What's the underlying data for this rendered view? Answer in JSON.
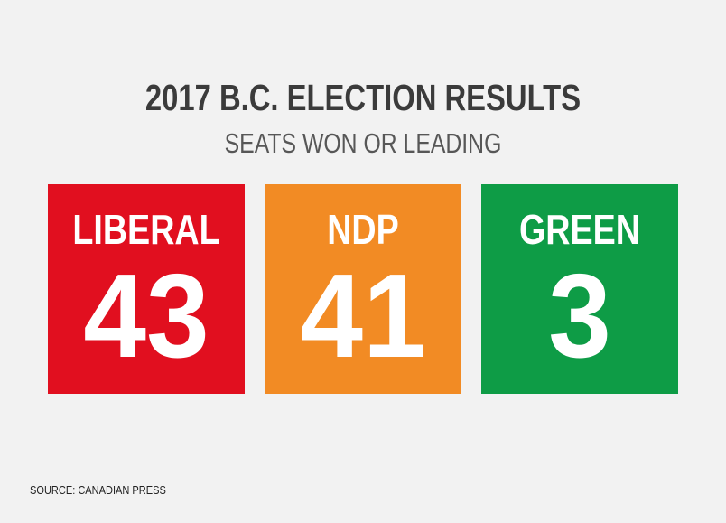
{
  "title": "2017 B.C. ELECTION RESULTS",
  "subtitle": "SEATS WON OR LEADING",
  "cards": [
    {
      "label": "LIBERAL",
      "value": 43,
      "color": "#e10f1f"
    },
    {
      "label": "NDP",
      "value": 41,
      "color": "#f28b24"
    },
    {
      "label": "GREEN",
      "value": 3,
      "color": "#0e9c46"
    }
  ],
  "source": "SOURCE: CANADIAN PRESS"
}
